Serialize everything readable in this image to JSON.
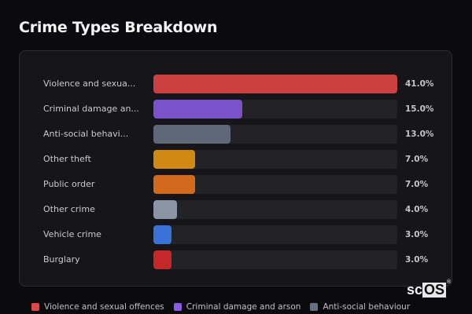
{
  "title": "Crime Types Breakdown",
  "rows": [
    {
      "label": "Violence and sexua...",
      "full": "Violence and sexual offences",
      "pct": "41.0%",
      "value": 41.0,
      "color": "#cc4040"
    },
    {
      "label": "Criminal damage an...",
      "full": "Criminal damage and arson",
      "pct": "15.0%",
      "value": 15.0,
      "color": "#7a52cc"
    },
    {
      "label": "Anti-social behavi...",
      "full": "Anti-social behaviour",
      "pct": "13.0%",
      "value": 13.0,
      "color": "#5e6878"
    },
    {
      "label": "Other theft",
      "full": "Other theft",
      "pct": "7.0%",
      "value": 7.0,
      "color": "#d08a14"
    },
    {
      "label": "Public order",
      "full": "Public order",
      "pct": "7.0%",
      "value": 7.0,
      "color": "#d2691c"
    },
    {
      "label": "Other crime",
      "full": "Other crime",
      "pct": "4.0%",
      "value": 4.0,
      "color": "#8a94a4"
    },
    {
      "label": "Vehicle crime",
      "full": "Vehicle crime",
      "pct": "3.0%",
      "value": 3.0,
      "color": "#3a72d8"
    },
    {
      "label": "Burglary",
      "full": "Burglary",
      "pct": "3.0%",
      "value": 3.0,
      "color": "#c42828"
    }
  ],
  "legend": [
    {
      "label": "Violence and sexual offences",
      "color": "#e04848"
    },
    {
      "label": "Criminal damage and arson",
      "color": "#8a5ce6"
    },
    {
      "label": "Anti-social behaviour",
      "color": "#667085"
    }
  ],
  "logo": {
    "sc": "sc",
    "os": "OS",
    "reg": "®"
  },
  "chart_data": {
    "type": "bar",
    "orientation": "horizontal",
    "title": "Crime Types Breakdown",
    "categories": [
      "Violence and sexual offences",
      "Criminal damage and arson",
      "Anti-social behaviour",
      "Other theft",
      "Public order",
      "Other crime",
      "Vehicle crime",
      "Burglary"
    ],
    "values": [
      41.0,
      15.0,
      13.0,
      7.0,
      7.0,
      4.0,
      3.0,
      3.0
    ],
    "unit": "%",
    "xlabel": "",
    "ylabel": "",
    "xlim": [
      0,
      41
    ],
    "grid": false,
    "legend_position": "bottom",
    "legend": [
      "Violence and sexual offences",
      "Criminal damage and arson",
      "Anti-social behaviour"
    ]
  }
}
